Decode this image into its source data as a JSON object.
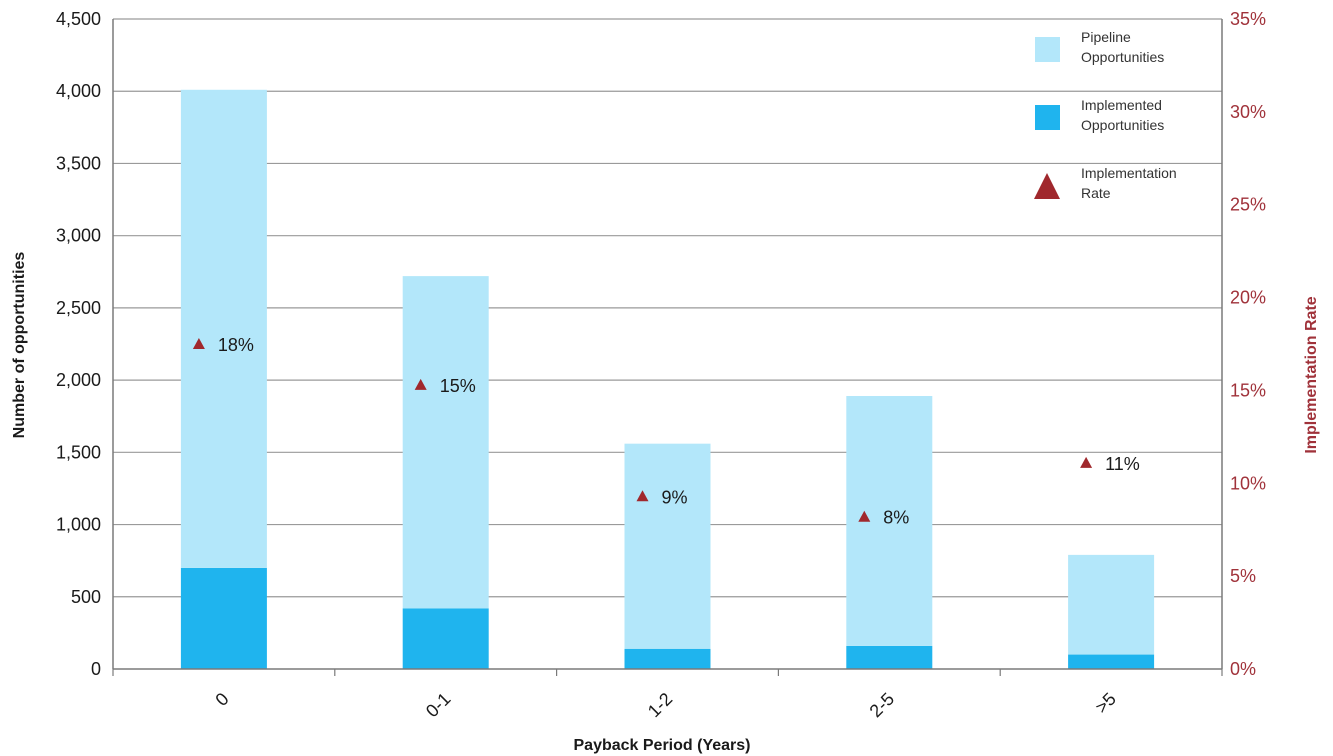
{
  "chart_data": {
    "type": "bar",
    "stacked": true,
    "categories": [
      "0",
      "0-1",
      "1-2",
      "2-5",
      ">5"
    ],
    "series": [
      {
        "name": "Implemented Opportunities",
        "kind": "bar",
        "axis": "left",
        "color": "#1fb4ee",
        "values": [
          700,
          420,
          140,
          160,
          100
        ]
      },
      {
        "name": "Pipeline Opportunities",
        "kind": "bar",
        "axis": "left",
        "color": "#b3e7fa",
        "values": [
          3310,
          2300,
          1420,
          1730,
          690
        ]
      },
      {
        "name": "Implementation Rate",
        "kind": "scatter",
        "axis": "right",
        "color": "#a0282d",
        "marker": "triangle",
        "values": [
          17.5,
          15.3,
          9.3,
          8.2,
          11.1
        ],
        "labels": [
          "18%",
          "15%",
          "9%",
          "8%",
          "11%"
        ]
      }
    ],
    "xlabel": "Payback Period (Years)",
    "ylabel": "Number of opportunities",
    "y2label": "Implementation Rate",
    "ylim": [
      0,
      4500
    ],
    "y2lim": [
      0,
      35
    ],
    "yticks": [
      "0",
      "500",
      "1,000",
      "1,500",
      "2,000",
      "2,500",
      "3,000",
      "3,500",
      "4,000",
      "4,500"
    ],
    "y2ticks": [
      "0%",
      "5%",
      "10%",
      "15%",
      "20%",
      "25%",
      "30%",
      "35%"
    ],
    "grid": "horizontal",
    "legend": {
      "position": "top-right",
      "items": [
        {
          "label": [
            "Pipeline",
            "Opportunities"
          ],
          "color": "#b3e7fa",
          "shape": "square"
        },
        {
          "label": [
            "Implemented",
            "Opportunities"
          ],
          "color": "#1fb4ee",
          "shape": "square"
        },
        {
          "label": [
            "Implementation",
            "Rate"
          ],
          "color": "#a0282d",
          "shape": "triangle"
        }
      ]
    }
  }
}
